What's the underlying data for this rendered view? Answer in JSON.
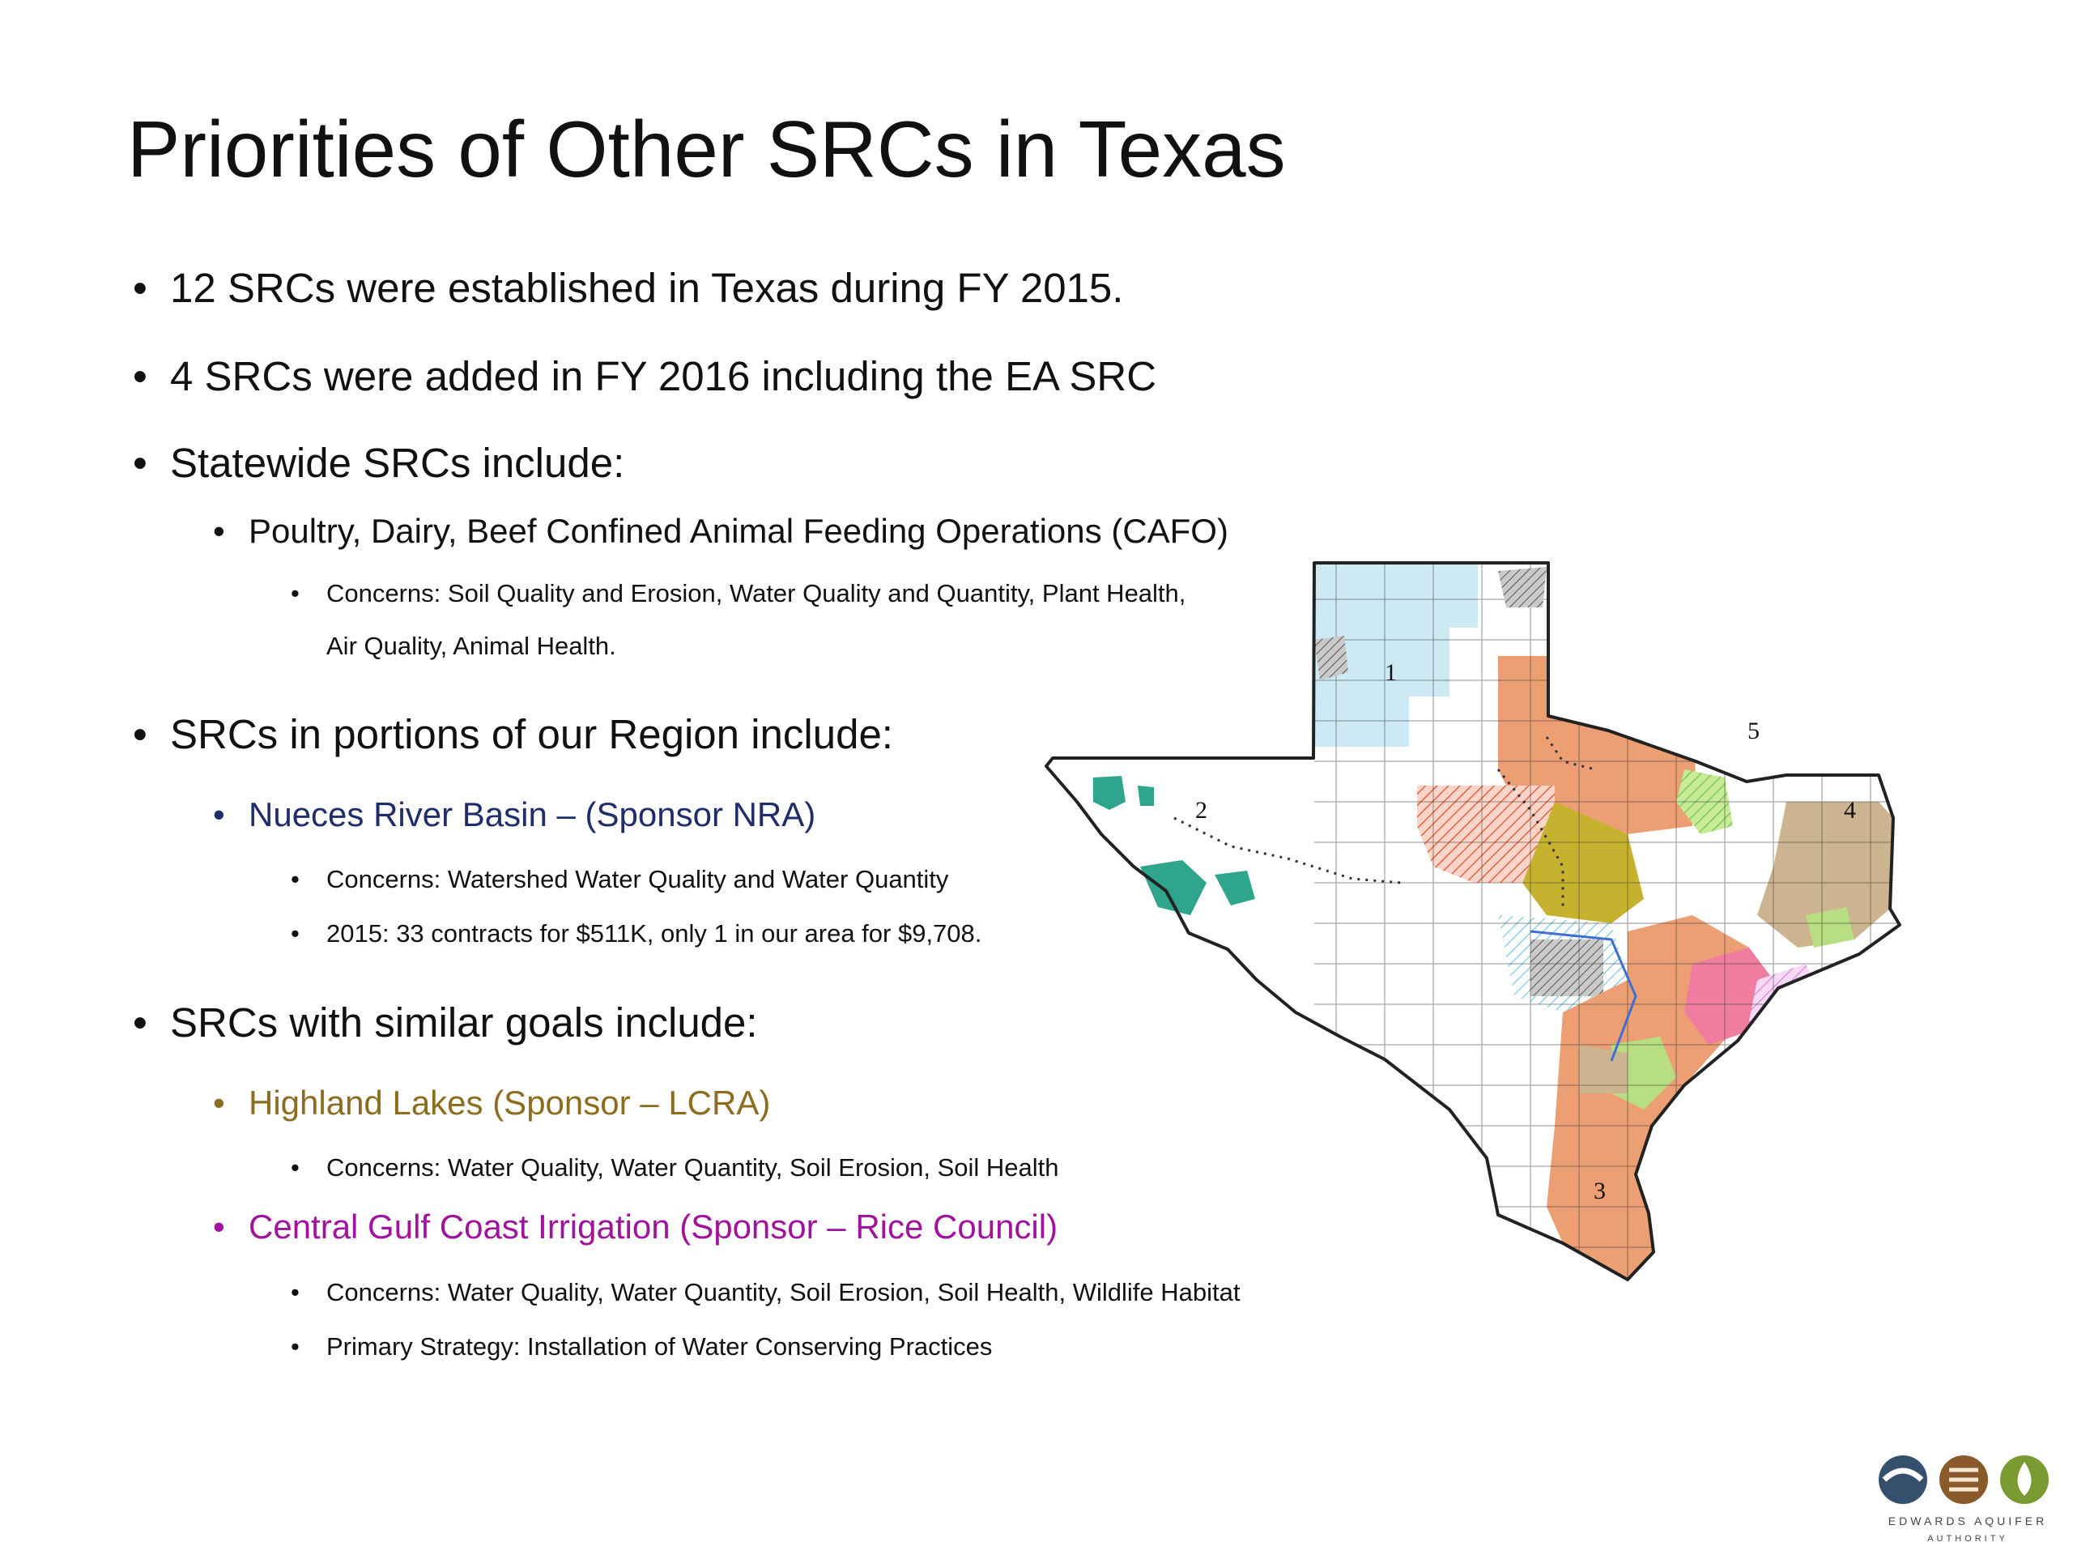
{
  "slide": {
    "title": "Priorities of Other SRCs in Texas",
    "bullets": [
      "12 SRCs were established in Texas during FY 2015.",
      "4 SRCs were added in FY 2016 including the EA SRC",
      "Statewide SRCs include:"
    ],
    "statewide": {
      "item": "Poultry, Dairy, Beef Confined Animal Feeding Operations (CAFO)",
      "concerns_line1": "Concerns:  Soil Quality and Erosion, Water Quality and Quantity, Plant Health,",
      "concerns_line2": "Air Quality, Animal Health."
    },
    "region": {
      "heading": "SRCs in portions of our Region include:",
      "item": "Nueces River Basin – (Sponsor NRA)",
      "concerns": "Concerns:  Watershed Water Quality and Water Quantity",
      "contracts": "2015:  33 contracts for $511K, only 1 in our area for $9,708."
    },
    "similar": {
      "heading": "SRCs with similar goals include:",
      "highland": {
        "item": "Highland Lakes (Sponsor – LCRA)",
        "concerns": "Concerns:  Water Quality, Water Quantity, Soil Erosion, Soil Health"
      },
      "gulf": {
        "item": "Central Gulf Coast Irrigation (Sponsor – Rice Council)",
        "concerns": "Concerns:  Water Quality, Water Quantity, Soil Erosion, Soil Health, Wildlife Habitat",
        "strategy": "Primary Strategy:  Installation of Water Conserving Practices"
      }
    },
    "bullet_char": "•"
  },
  "map": {
    "region_labels": [
      "1",
      "2",
      "3",
      "4",
      "5"
    ],
    "colors": {
      "panhandle": "#cde9f3",
      "orange": "#ec9f73",
      "tan": "#cbb48f",
      "teal": "#2fa58e",
      "olive": "#c7b230",
      "green": "#b7df82",
      "pink": "#f07da0",
      "violet": "#f3c6f0",
      "salmon_hatch": "#f5a493",
      "border": "#222222",
      "blue_outline": "#3f6fd1"
    }
  },
  "logo": {
    "line1": "EDWARDS AQUIFER",
    "line2": "AUTHORITY",
    "colors": {
      "blue": "#34506d",
      "brown": "#8b5a2b",
      "green": "#7a9a32"
    }
  }
}
